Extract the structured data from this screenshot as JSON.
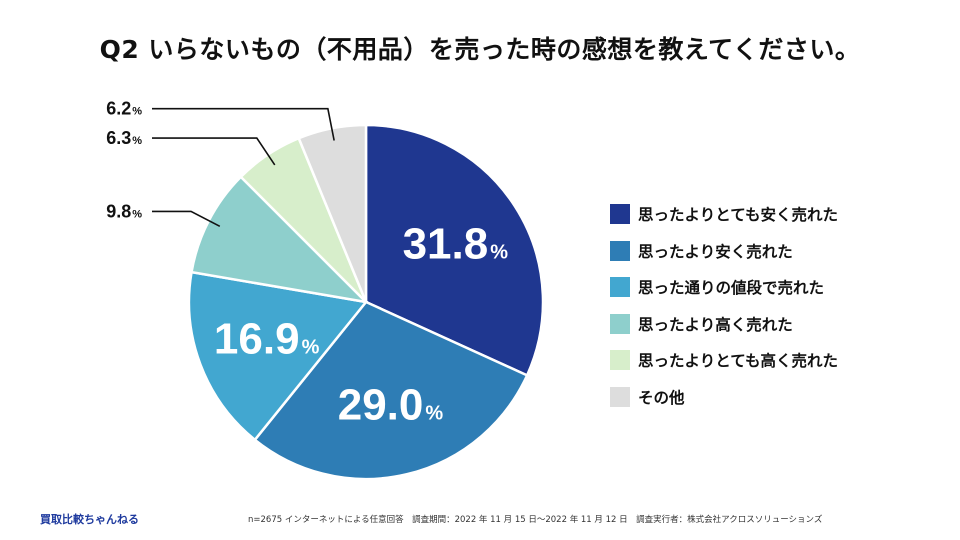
{
  "title": "Q2 いらないもの（不用品）を売った時の感想を教えてください。",
  "brand": "買取比較ちゃんねる",
  "footnote": "n=2675 インターネットによる任意回答　調査期間：2022 年 11 月 15 日〜2022 年 11 月 12 日　調査実行者：株式会社アクロスソリューションズ",
  "chart_data": {
    "type": "pie",
    "unit": "%",
    "categories": [
      "思ったよりとても安く売れた",
      "思ったより安く売れた",
      "思った通りの値段で売れた",
      "思ったより高く売れた",
      "思ったよりとても高く売れた",
      "その他"
    ],
    "values": [
      31.8,
      29.0,
      16.9,
      9.8,
      6.3,
      6.2
    ],
    "value_labels": [
      "31.8",
      "29.0",
      "16.9",
      "9.8",
      "6.3",
      "6.2"
    ],
    "colors": [
      "#1f3790",
      "#2e7db5",
      "#42a7d0",
      "#8ecfcc",
      "#d7eecb",
      "#dddddd"
    ],
    "label_colors": [
      "#ffffff",
      "#ffffff",
      "#ffffff",
      "#111111",
      "#111111",
      "#111111"
    ],
    "legend_position": "right",
    "start": "top",
    "direction": "clockwise"
  }
}
